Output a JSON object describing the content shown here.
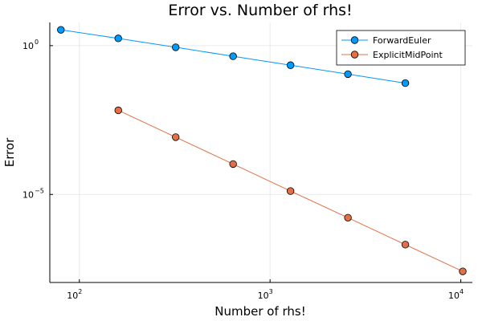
{
  "chart_data": {
    "type": "line",
    "title": "Error vs. Number of rhs!",
    "xlabel": "Number of rhs!",
    "ylabel": "Error",
    "xscale": "log10",
    "yscale": "log10",
    "xlim": [
      70,
      11500
    ],
    "ylim": [
      1.1e-08,
      6.0
    ],
    "xticks": [
      {
        "value": 100,
        "base": "10",
        "exp": "2"
      },
      {
        "value": 1000,
        "base": "10",
        "exp": "3"
      },
      {
        "value": 10000,
        "base": "10",
        "exp": "4"
      }
    ],
    "yticks": [
      {
        "value": 1,
        "label": "10",
        "exp": "0",
        "plain": true
      },
      {
        "value": 1e-05,
        "base": "10",
        "exp": "−5"
      }
    ],
    "grid": true,
    "legend_position": "top-right",
    "series": [
      {
        "name": "ForwardEuler",
        "color": "#009AFA",
        "x": [
          80,
          160,
          320,
          640,
          1280,
          2560,
          5120
        ],
        "y": [
          3.4,
          1.75,
          0.88,
          0.44,
          0.22,
          0.11,
          0.055
        ]
      },
      {
        "name": "ExplicitMidPoint",
        "color": "#E26F46",
        "x": [
          160,
          320,
          640,
          1280,
          2560,
          5120,
          10240
        ],
        "y": [
          0.0067,
          0.00084,
          0.000105,
          1.3e-05,
          1.65e-06,
          2.06e-07,
          2.6e-08
        ]
      }
    ]
  }
}
